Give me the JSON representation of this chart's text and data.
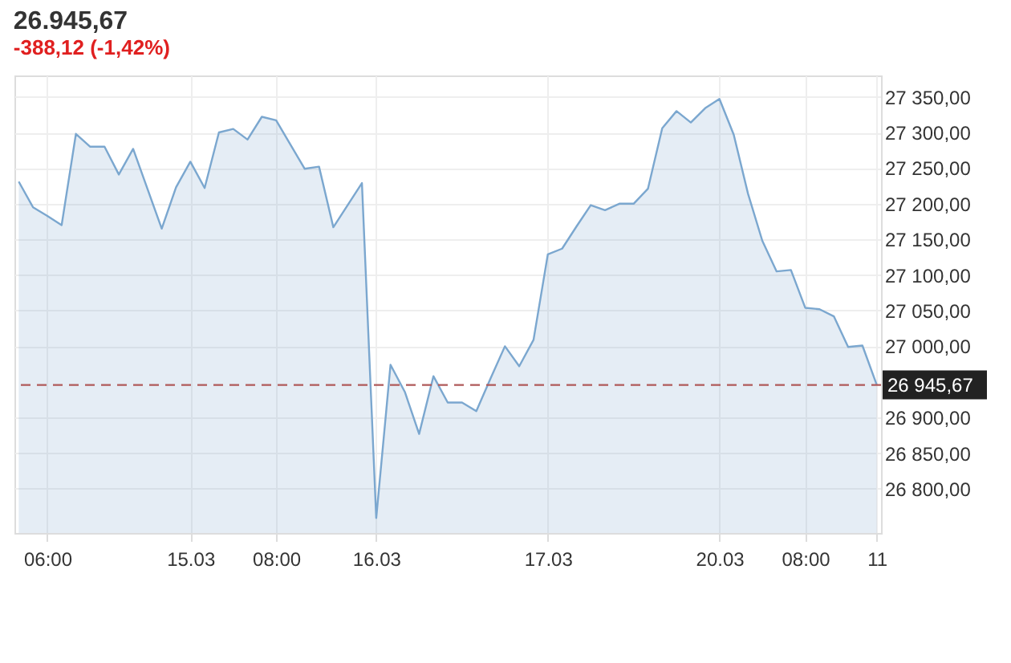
{
  "chart_data": {
    "type": "area",
    "title": "26.945,67",
    "subtitle": "-388,12 (-1,42%)",
    "categories": [
      null,
      null,
      "06:00",
      null,
      null,
      null,
      null,
      null,
      null,
      null,
      null,
      null,
      "15.03",
      null,
      null,
      null,
      null,
      null,
      "08:00",
      null,
      null,
      null,
      null,
      null,
      null,
      "16.03",
      null,
      null,
      null,
      null,
      null,
      null,
      null,
      null,
      null,
      null,
      null,
      "17.03",
      null,
      null,
      null,
      null,
      null,
      null,
      null,
      null,
      null,
      null,
      null,
      "20.03",
      null,
      null,
      null,
      null,
      null,
      "08:00",
      null,
      null,
      null,
      null,
      "11"
    ],
    "series": [
      {
        "color": "#7ba7cf",
        "values": [
          27231,
          27195,
          27183,
          27170,
          27298,
          27280,
          27280,
          27241,
          27277,
          27221,
          27165,
          27223,
          27259,
          27222,
          27300,
          27305,
          27290,
          27322,
          27317,
          27283,
          27249,
          27252,
          27167,
          27198,
          27229,
          26759,
          26974,
          26936,
          26877,
          26958,
          26921,
          26921,
          26909,
          26955,
          27000,
          26972,
          27009,
          27129,
          27137,
          27168,
          27198,
          27191,
          27200,
          27200,
          27221,
          27306,
          27330,
          27314,
          27334,
          27347,
          27297,
          27214,
          27148,
          27105,
          27107,
          27054,
          27052,
          27042,
          26999,
          27001,
          26946
        ]
      }
    ],
    "ylim": [
      26738,
      27380
    ],
    "yticks": [
      {
        "value": 26800,
        "label": "26 800,00"
      },
      {
        "value": 26850,
        "label": "26 850,00"
      },
      {
        "value": 26900,
        "label": "26 900,00"
      },
      {
        "value": 27000,
        "label": "27 000,00"
      },
      {
        "value": 27050,
        "label": "27 050,00"
      },
      {
        "value": 27100,
        "label": "27 100,00"
      },
      {
        "value": 27150,
        "label": "27 150,00"
      },
      {
        "value": 27200,
        "label": "27 200,00"
      },
      {
        "value": 27250,
        "label": "27 250,00"
      },
      {
        "value": 27300,
        "label": "27 300,00"
      },
      {
        "value": 27350,
        "label": "27 350,00"
      }
    ],
    "ref_lines": [
      {
        "axis": "y",
        "value": 26945.67,
        "label": "26 945,67",
        "color": "#b05a5a",
        "line_style": "dashed"
      }
    ],
    "grid": true
  }
}
